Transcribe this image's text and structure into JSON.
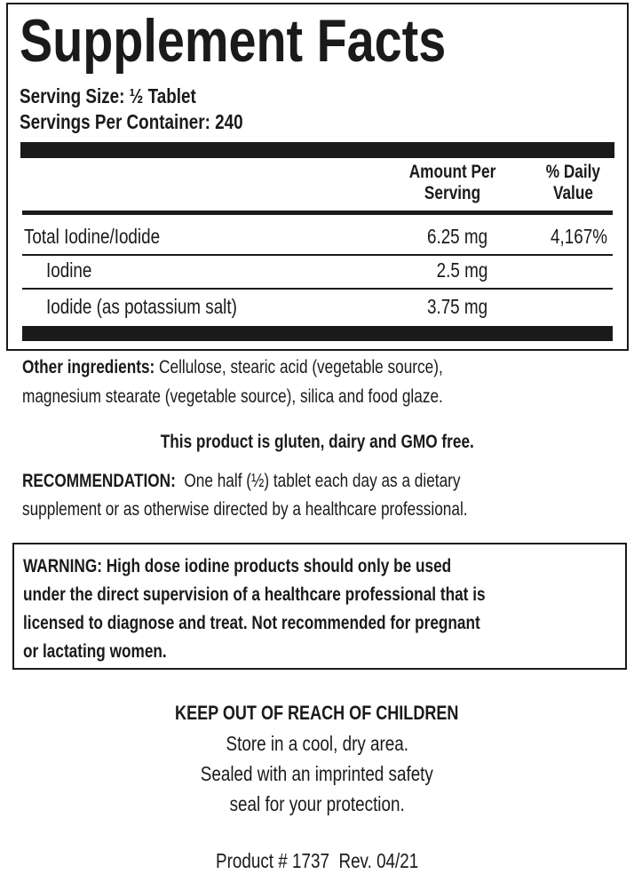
{
  "title": "Supplement Facts",
  "serving_size": "Serving Size: ½ Tablet",
  "servings_per_container": "Servings Per Container: 240",
  "header": {
    "amount_1": "Amount Per",
    "amount_2": "Serving",
    "dv_1": "% Daily",
    "dv_2": "Value"
  },
  "rows": [
    {
      "name": "Total Iodine/Iodide",
      "amount": "6.25 mg",
      "dv": "4,167%"
    },
    {
      "name": "Iodine",
      "amount": "2.5 mg",
      "dv": ""
    },
    {
      "name": "Iodide (as potassium salt)",
      "amount": "3.75 mg",
      "dv": ""
    }
  ],
  "other_label": "Other ingredients:",
  "other_1": " Cellulose, stearic acid (vegetable source),",
  "other_2": "magnesium stearate (vegetable source), silica and food glaze.",
  "free": "This product is gluten, dairy and GMO free.",
  "rec_label": "RECOMMENDATION:",
  "rec_1": "  One half (½) tablet each day as a dietary",
  "rec_2": "supplement or as otherwise directed by a healthcare professional.",
  "warning": [
    "WARNING: High dose iodine products should only be used",
    "under the direct supervision of a healthcare professional that is",
    "licensed to diagnose and treat. Not recommended for pregnant",
    "or lactating women."
  ],
  "keep": "KEEP OUT OF REACH OF CHILDREN",
  "store": [
    "Store in a cool, dry area.",
    "Sealed with an imprinted safety",
    "seal for your protection."
  ],
  "product": "Product # 1737  Rev. 04/21"
}
